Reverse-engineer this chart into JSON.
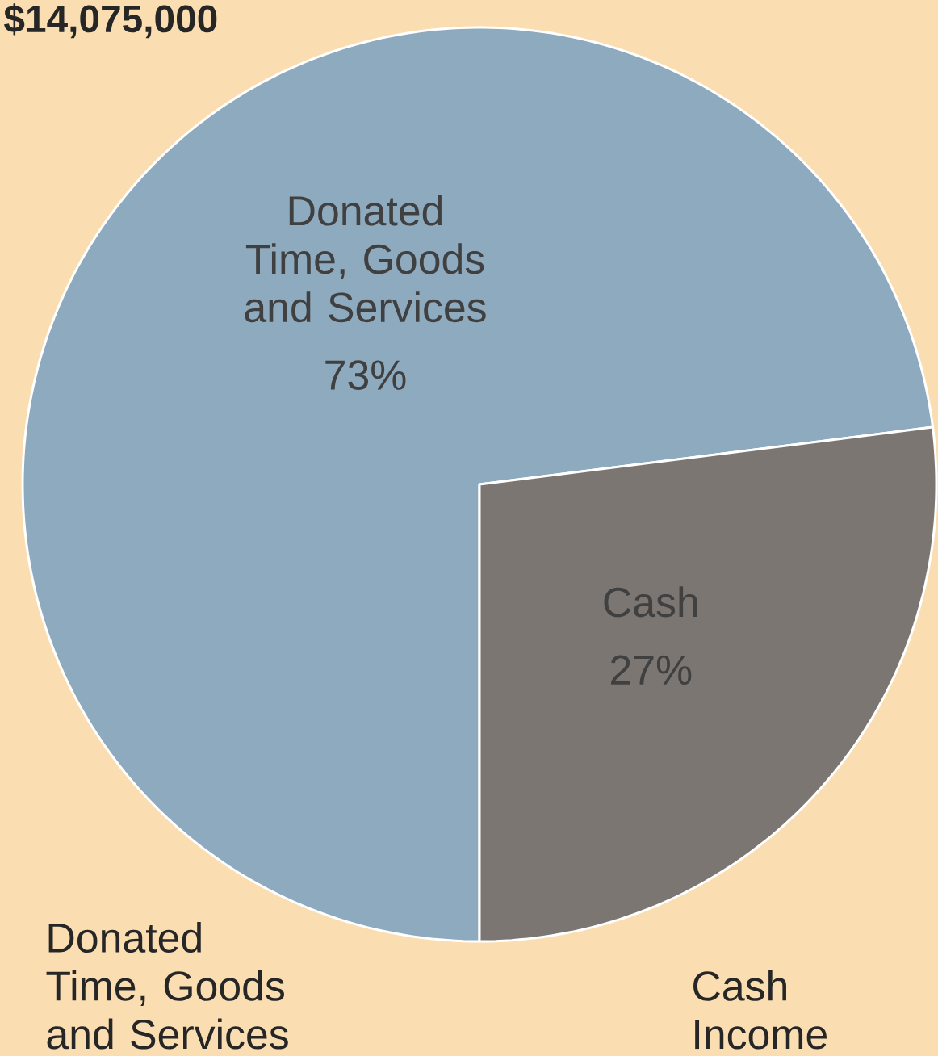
{
  "chart_data": {
    "type": "pie",
    "title": "$14,075,000",
    "categories": [
      "Donated Time, Goods and Services",
      "Cash"
    ],
    "values": [
      73,
      27
    ],
    "colors": [
      "#8eaabf",
      "#7b7672"
    ],
    "value_labels": [
      "73%",
      "27%"
    ],
    "annotations": [
      "Donated Time, Goods and Services",
      "Cash Income"
    ]
  }
}
